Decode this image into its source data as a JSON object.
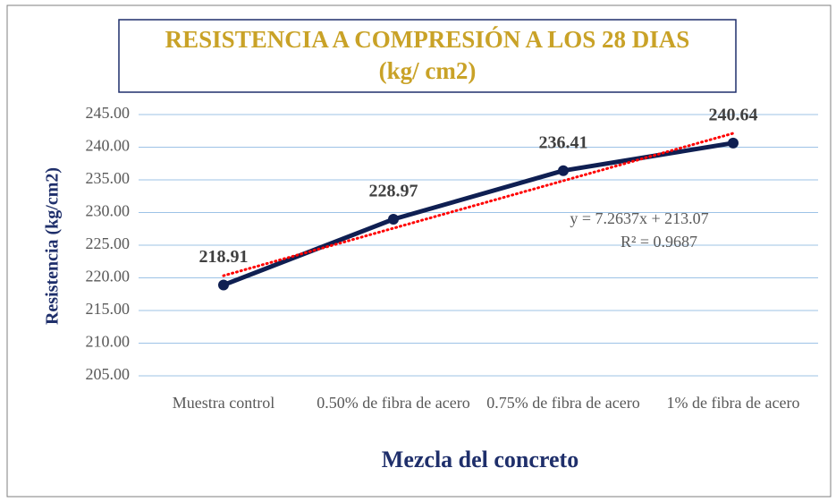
{
  "chart_data": {
    "type": "line",
    "title": "RESISTENCIA A COMPRESIÓN A LOS 28 DIAS",
    "subtitle": "(kg/ cm2)",
    "x_label": "Mezcla del concreto",
    "y_label": "Resistencia (kg/cm2)",
    "categories": [
      "Muestra control",
      "0.50% de fibra de acero",
      "0.75% de fibra de acero",
      "1% de fibra de acero"
    ],
    "series": [
      {
        "name": "Resistencia",
        "color": "#0f1f52",
        "values": [
          218.91,
          228.97,
          236.41,
          240.64
        ]
      }
    ],
    "ylim": [
      205,
      245
    ],
    "yticks": [
      {
        "value": 205,
        "label": "205.00"
      },
      {
        "value": 210,
        "label": "210.00"
      },
      {
        "value": 215,
        "label": "215.00"
      },
      {
        "value": 220,
        "label": "220.00"
      },
      {
        "value": 225,
        "label": "225.00"
      },
      {
        "value": 230,
        "label": "230.00"
      },
      {
        "value": 235,
        "label": "235.00"
      },
      {
        "value": 240,
        "label": "240.00"
      },
      {
        "value": 245,
        "label": "245.00"
      }
    ],
    "grid": true,
    "trendline": {
      "slope": 7.2637,
      "intercept": 213.07,
      "color": "#ff0000",
      "equation": "y = 7.2637x + 213.07",
      "r2": "R² = 0.9687"
    }
  }
}
